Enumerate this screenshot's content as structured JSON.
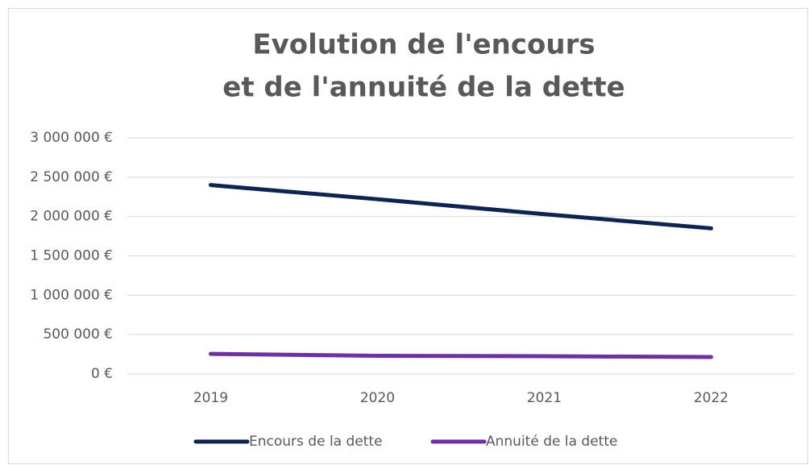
{
  "chart_data": {
    "type": "line",
    "title": [
      "Evolution de l'encours",
      "et de l'annuité de la dette"
    ],
    "categories": [
      "2019",
      "2020",
      "2021",
      "2022"
    ],
    "series": [
      {
        "name": "Encours de la dette",
        "color": "#0f2353",
        "values": [
          2400000,
          2220000,
          2030000,
          1850000
        ]
      },
      {
        "name": "Annuité de la dette",
        "color": "#7030a0",
        "values": [
          255000,
          230000,
          225000,
          215000
        ]
      }
    ],
    "ylim": [
      0,
      3000000
    ],
    "yticks": [
      {
        "value": 0,
        "label": "0 €"
      },
      {
        "value": 500000,
        "label": "500 000 €"
      },
      {
        "value": 1000000,
        "label": "1 000 000 €"
      },
      {
        "value": 1500000,
        "label": "1 500 000 €"
      },
      {
        "value": 2000000,
        "label": "2 000 000 €"
      },
      {
        "value": 2500000,
        "label": "2 500 000 €"
      },
      {
        "value": 3000000,
        "label": "3 000 000 €"
      }
    ],
    "grid": true,
    "legend": "bottom"
  }
}
